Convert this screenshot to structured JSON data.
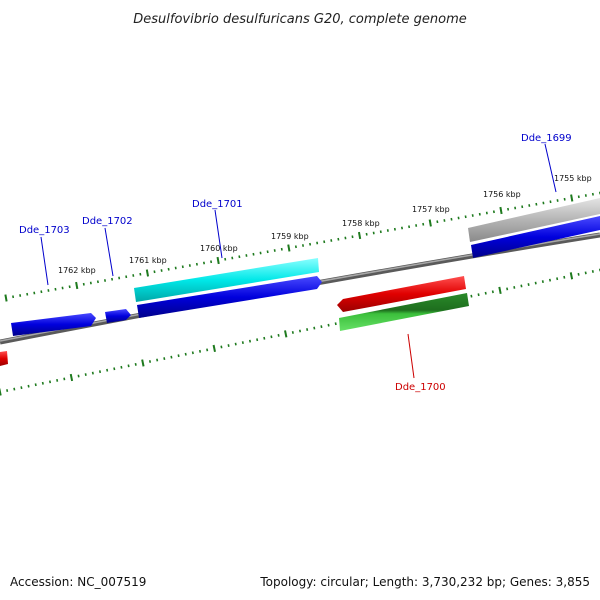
{
  "title": "Desulfovibrio desulfuricans G20, complete genome",
  "kbp_labels": [
    "1762 kbp",
    "1761 kbp",
    "1760 kbp",
    "1759 kbp",
    "1758 kbp",
    "1757 kbp",
    "1756 kbp",
    "1755 kbp"
  ],
  "gene_labels": {
    "dde_1703": "Dde_1703",
    "dde_1702": "Dde_1702",
    "dde_1701": "Dde_1701",
    "dde_1700": "Dde_1700",
    "dde_1699": "Dde_1699"
  },
  "footer": {
    "accession": "Accession: NC_007519",
    "stats": "Topology: circular; Length: 3,730,232 bp; Genes: 3,855"
  },
  "colors": {
    "backbone": "#7a7a7a",
    "tick": "#1e7a1e",
    "forward_gene": "#1010dd",
    "reverse_gene": "#e01010",
    "cyan_gene": "#18e6e6",
    "green_gene": "#2a9a2a",
    "gray_gene": "#b8b8b8",
    "label_blue": "#0000cc",
    "label_red": "#cc0000"
  }
}
